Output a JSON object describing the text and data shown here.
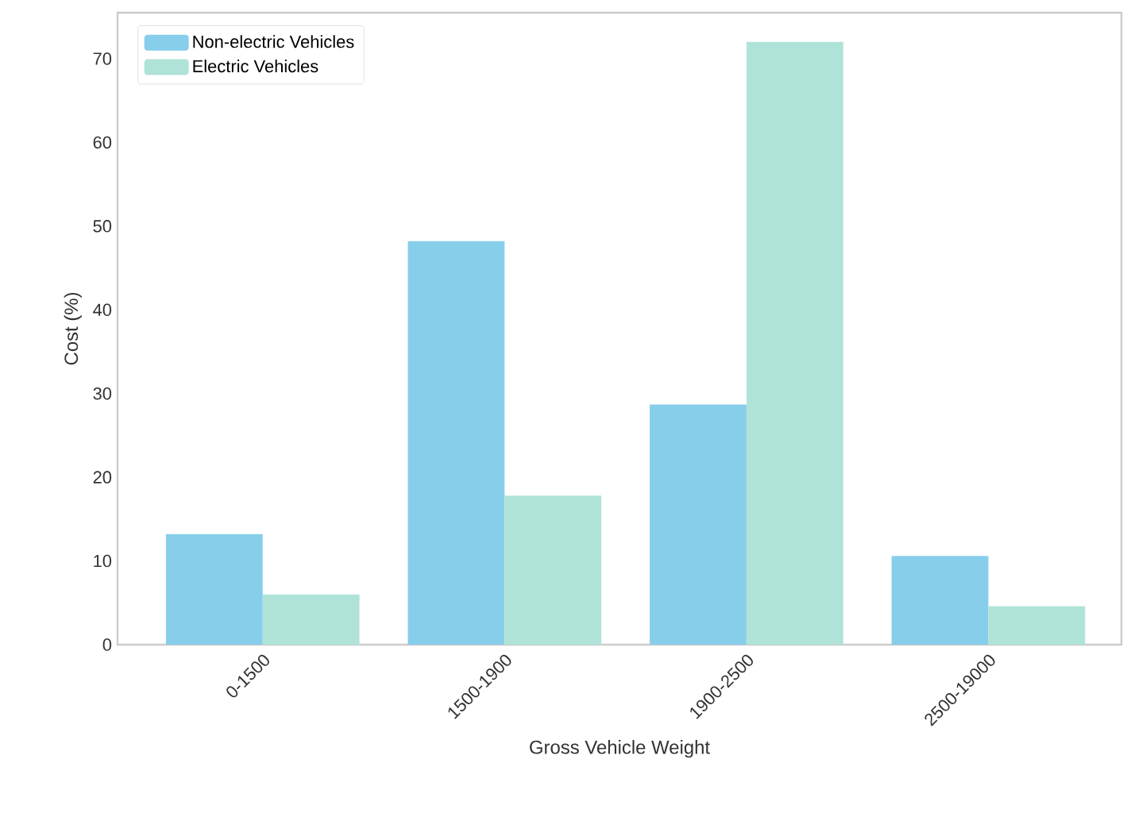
{
  "chart_data": {
    "type": "bar",
    "xlabel": "Gross Vehicle Weight",
    "ylabel": "Cost (%)",
    "categories": [
      "0-1500",
      "1500-1900",
      "1900-2500",
      "2500-19000"
    ],
    "series": [
      {
        "name": "Non-electric Vehicles",
        "color": "#87ceeb",
        "values": [
          13.2,
          48.2,
          28.7,
          10.6
        ]
      },
      {
        "name": "Electric Vehicles",
        "color": "#b0e3d8",
        "values": [
          6.0,
          17.8,
          72.0,
          4.6
        ]
      }
    ],
    "ylim": [
      0,
      75.5
    ],
    "yticks": [
      0,
      10,
      20,
      30,
      40,
      50,
      60,
      70
    ],
    "grid": false,
    "legend": "top left"
  }
}
